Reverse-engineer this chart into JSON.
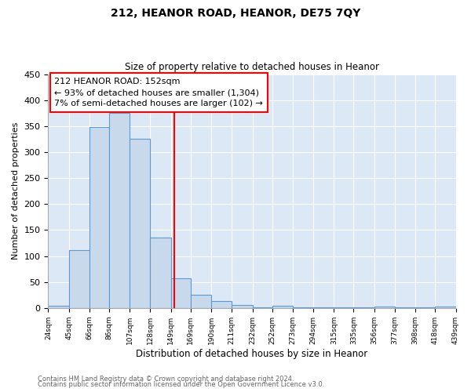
{
  "title": "212, HEANOR ROAD, HEANOR, DE75 7QY",
  "subtitle": "Size of property relative to detached houses in Heanor",
  "xlabel": "Distribution of detached houses by size in Heanor",
  "ylabel": "Number of detached properties",
  "bin_edges": [
    24,
    45,
    66,
    86,
    107,
    128,
    149,
    169,
    190,
    211,
    232,
    252,
    273,
    294,
    315,
    335,
    356,
    377,
    398,
    418,
    439
  ],
  "bin_counts": [
    5,
    112,
    349,
    376,
    325,
    136,
    57,
    25,
    13,
    6,
    1,
    5,
    2,
    2,
    1,
    1,
    3,
    1,
    1,
    3
  ],
  "bar_facecolor": "#c9d9ec",
  "bar_edgecolor": "#5b9bd5",
  "vline_x": 152,
  "vline_color": "red",
  "annotation_title": "212 HEANOR ROAD: 152sqm",
  "annotation_line1": "← 93% of detached houses are smaller (1,304)",
  "annotation_line2": "7% of semi-detached houses are larger (102) →",
  "annotation_box_edgecolor": "red",
  "ylim": [
    0,
    450
  ],
  "yticks": [
    0,
    50,
    100,
    150,
    200,
    250,
    300,
    350,
    400,
    450
  ],
  "tick_labels": [
    "24sqm",
    "45sqm",
    "66sqm",
    "86sqm",
    "107sqm",
    "128sqm",
    "149sqm",
    "169sqm",
    "190sqm",
    "211sqm",
    "232sqm",
    "252sqm",
    "273sqm",
    "294sqm",
    "315sqm",
    "335sqm",
    "356sqm",
    "377sqm",
    "398sqm",
    "418sqm",
    "439sqm"
  ],
  "footer1": "Contains HM Land Registry data © Crown copyright and database right 2024.",
  "footer2": "Contains public sector information licensed under the Open Government Licence v3.0.",
  "fig_bg_color": "#ffffff",
  "plot_bg_color": "#dce8f5"
}
